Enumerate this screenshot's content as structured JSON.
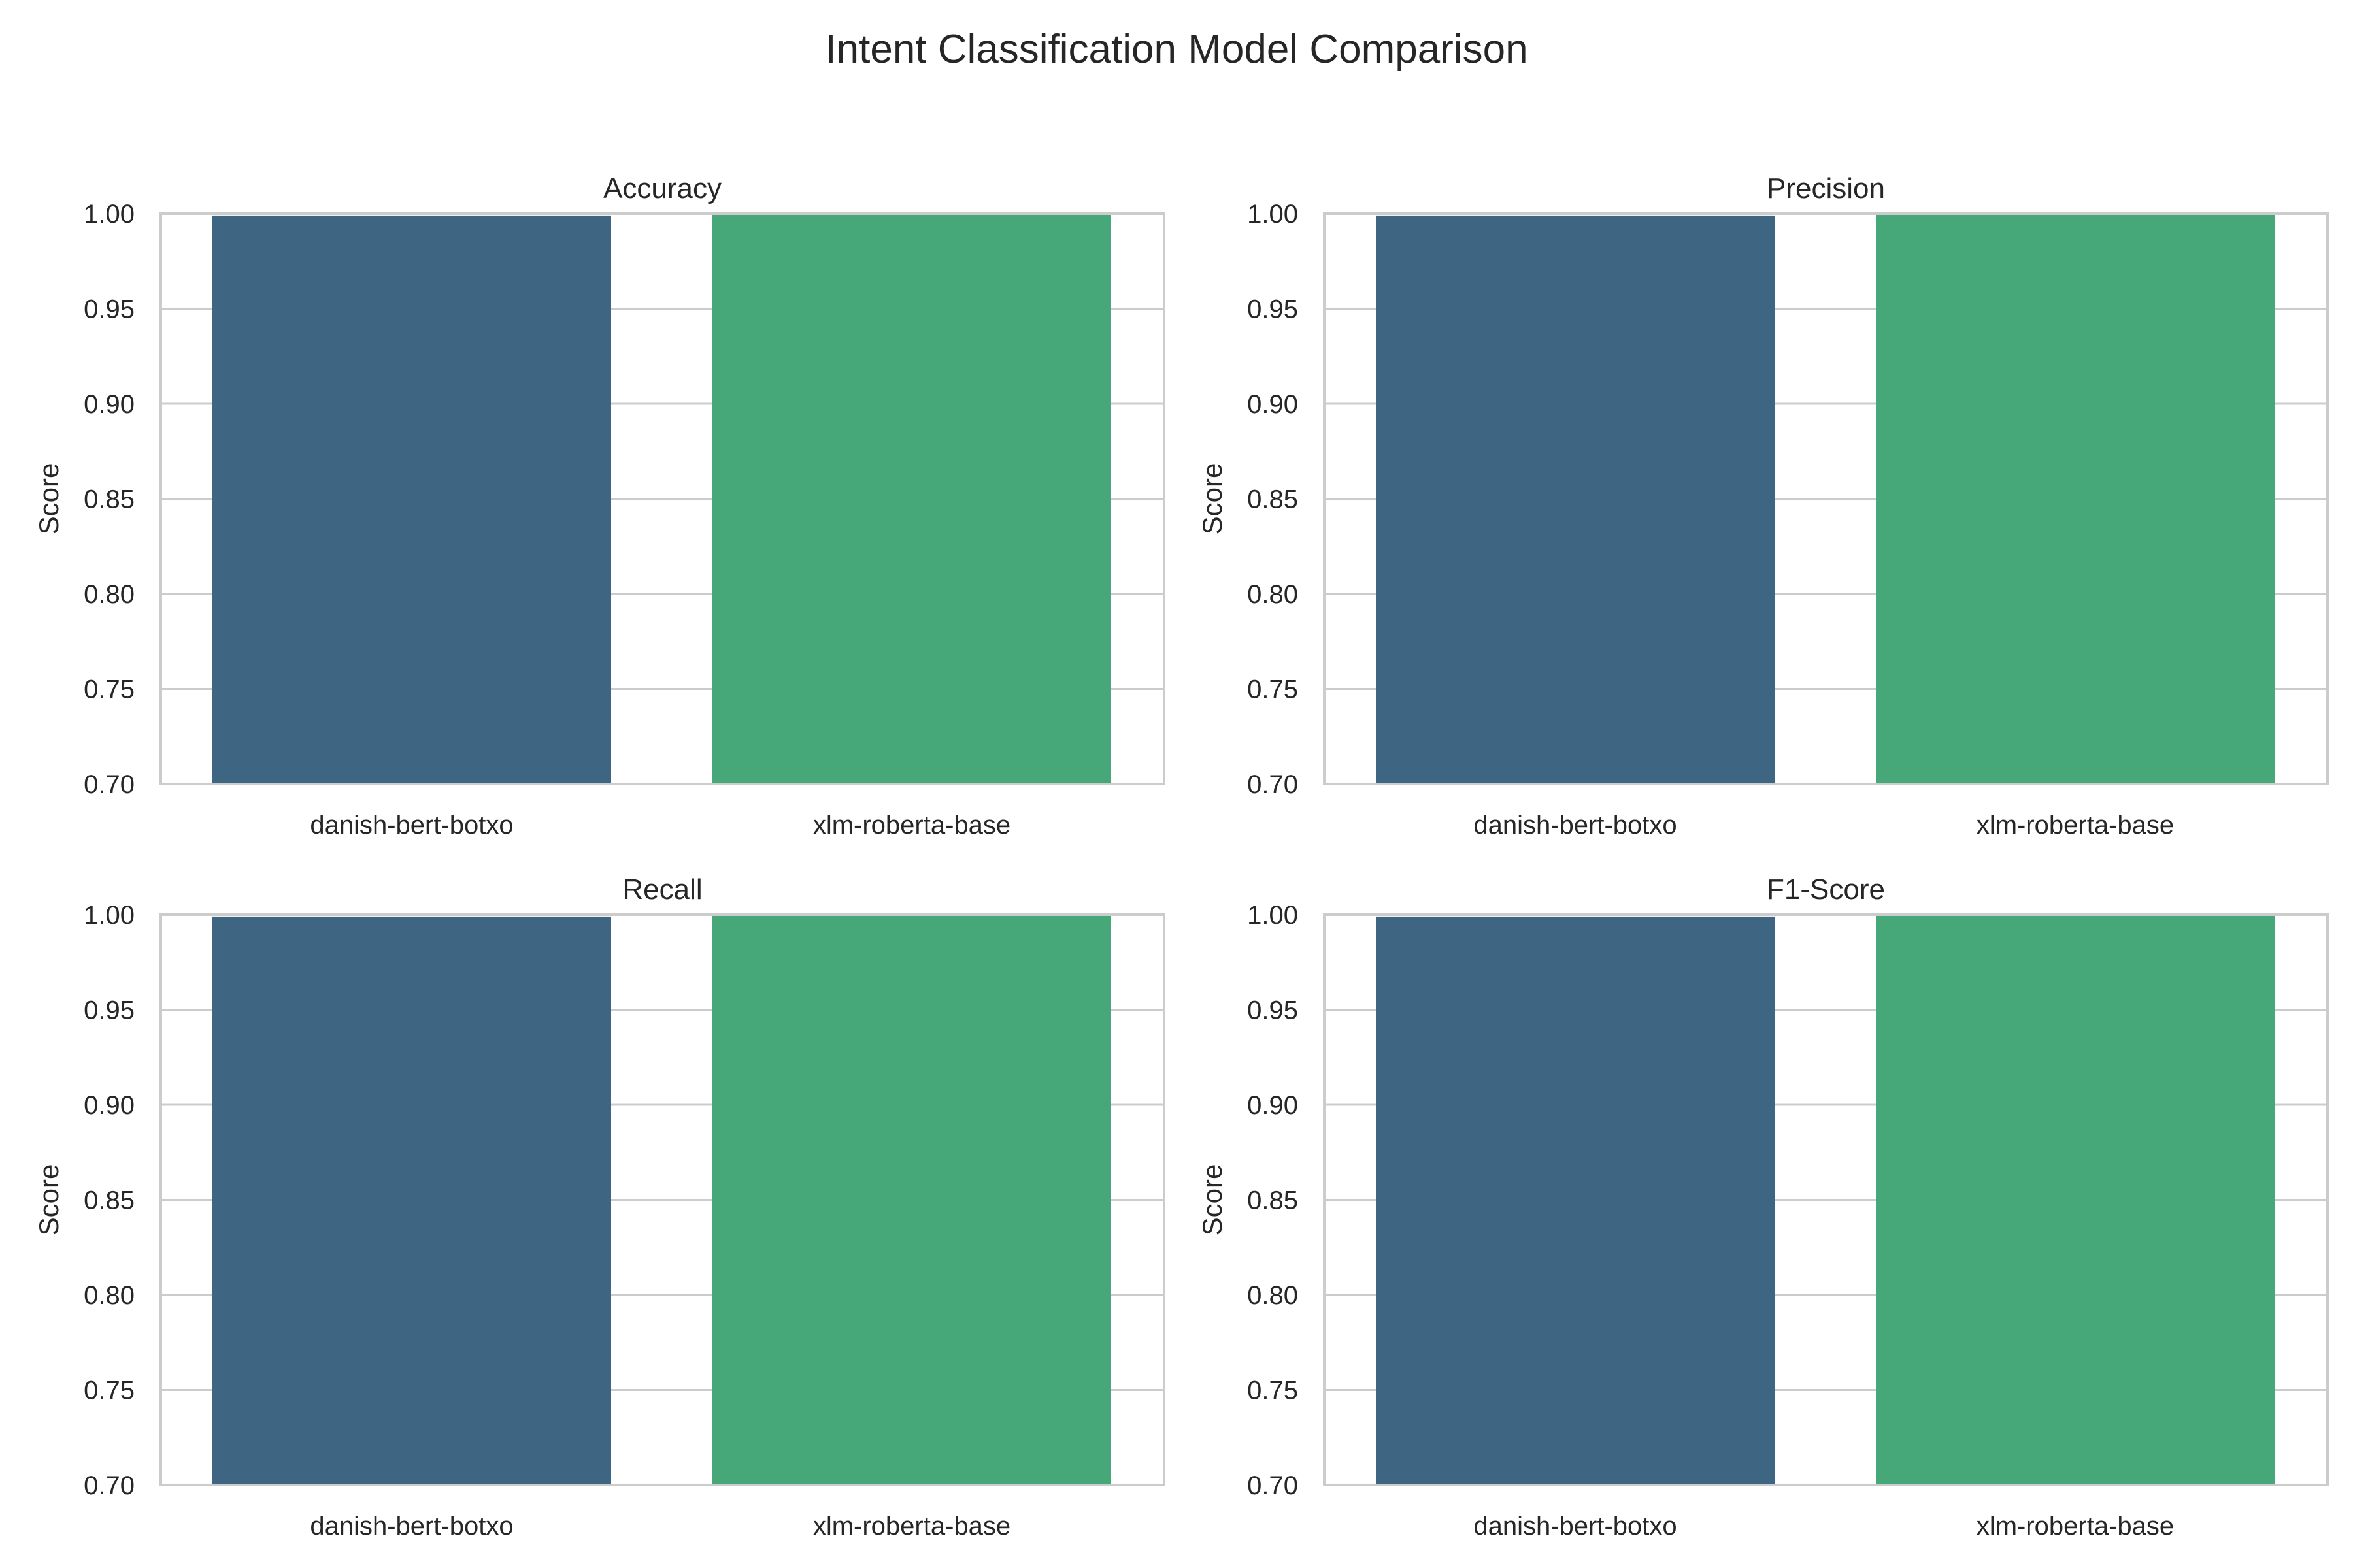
{
  "chart_data": {
    "type": "bar",
    "title": "Intent Classification Model Comparison",
    "categories": [
      "danish-bert-botxo",
      "xlm-roberta-base"
    ],
    "colors": [
      "#3e6582",
      "#46a778"
    ],
    "ylabel": "Score",
    "ylim": [
      0.7,
      1.0
    ],
    "yticks": [
      "0.70",
      "0.75",
      "0.80",
      "0.85",
      "0.90",
      "0.95",
      "1.00"
    ],
    "grid": "y",
    "panels": [
      {
        "title": "Accuracy",
        "values": [
          0.999,
          1.0
        ]
      },
      {
        "title": "Precision",
        "values": [
          0.999,
          1.0
        ]
      },
      {
        "title": "Recall",
        "values": [
          0.999,
          1.0
        ]
      },
      {
        "title": "F1-Score",
        "values": [
          0.999,
          1.0
        ]
      }
    ]
  }
}
